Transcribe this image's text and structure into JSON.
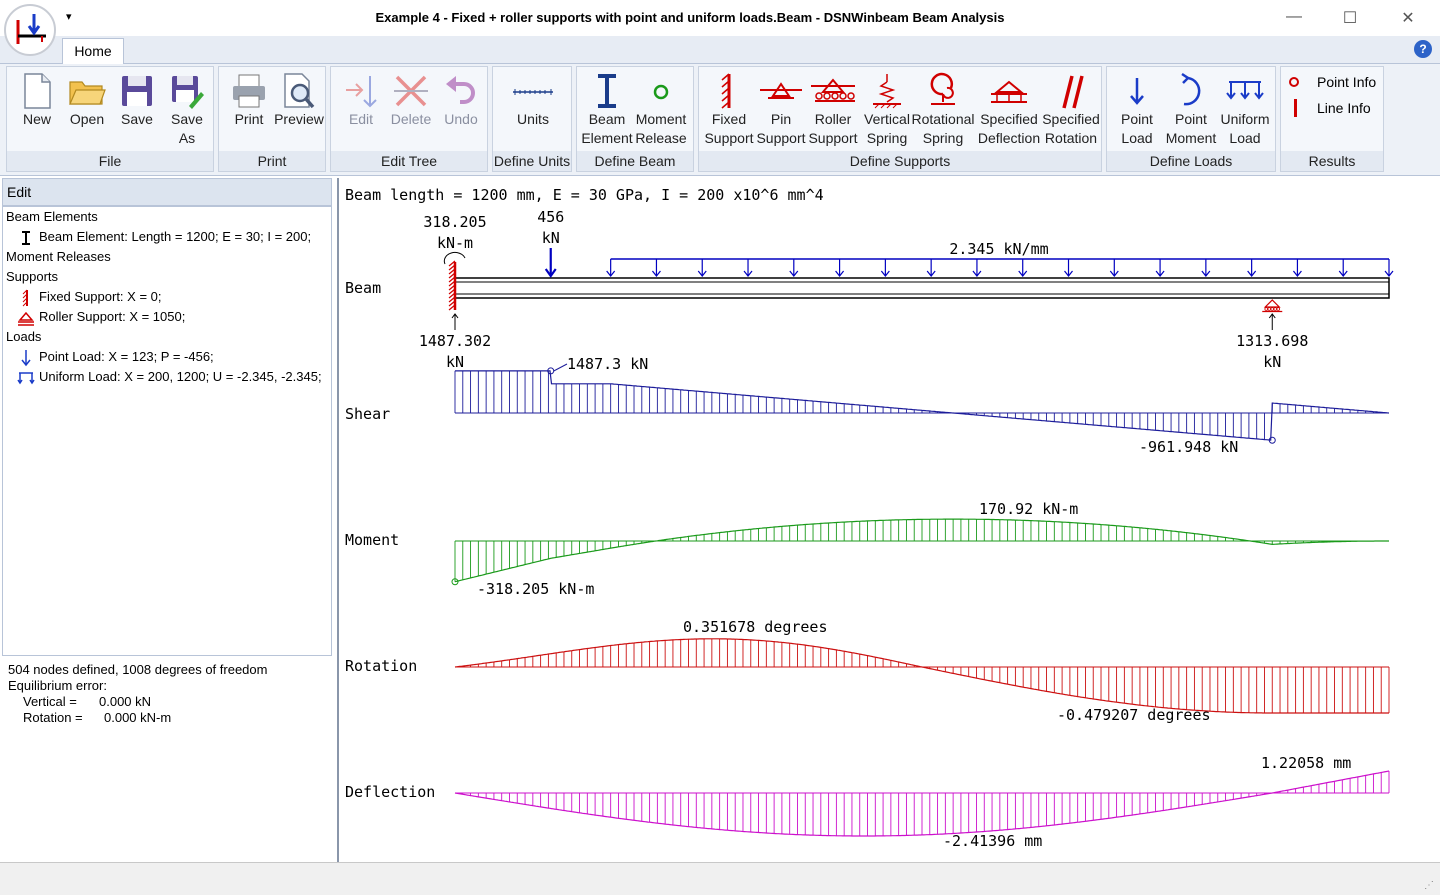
{
  "window": {
    "title": "Example 4 - Fixed + roller supports with point and uniform loads.Beam - DSNWinbeam Beam Analysis",
    "qat_glyph": "▾",
    "minimize": "—",
    "maximize": "☐",
    "close": "✕"
  },
  "tabs": {
    "home": "Home",
    "help": "?"
  },
  "ribbon": {
    "file": {
      "label": "File",
      "buttons": [
        "New",
        "Open",
        "Save",
        "Save\nAs"
      ]
    },
    "print": {
      "label": "Print",
      "buttons": [
        "Print",
        "Preview"
      ]
    },
    "edit_tree": {
      "label": "Edit Tree",
      "buttons": [
        "Edit",
        "Delete",
        "Undo"
      ]
    },
    "define_units": {
      "label": "Define Units",
      "buttons": [
        "Units"
      ]
    },
    "define_beam": {
      "label": "Define Beam",
      "buttons": [
        "Beam\nElement",
        "Moment\nRelease"
      ]
    },
    "define_supports": {
      "label": "Define Supports",
      "buttons": [
        "Fixed\nSupport",
        "Pin\nSupport",
        "Roller\nSupport",
        "Vertical\nSpring",
        "Rotational\nSpring",
        "Specified\nDeflection",
        "Specified\nRotation"
      ]
    },
    "define_loads": {
      "label": "Define Loads",
      "buttons": [
        "Point\nLoad",
        "Point\nMoment",
        "Uniform\nLoad"
      ]
    },
    "results": {
      "label": "Results",
      "buttons": [
        "Point Info",
        "Line Info"
      ]
    }
  },
  "left_panel": {
    "header": "Edit",
    "tree": {
      "beam_elements": "Beam Elements",
      "beam_element_item": "Beam Element: Length = 1200; E = 30; I = 200;",
      "moment_releases": "Moment Releases",
      "supports": "Supports",
      "fixed_support_item": "Fixed Support: X = 0;",
      "roller_support_item": "Roller Support: X = 1050;",
      "loads": "Loads",
      "point_load_item": "Point Load: X = 123; P = -456;",
      "uniform_load_item": "Uniform Load: X = 200, 1200; U = -2.345, -2.345;"
    },
    "status": {
      "nodes": "504 nodes defined, 1008 degrees of freedom",
      "eq_error": "Equilibrium error:",
      "vertical_label": "Vertical =",
      "vertical_value": "0.000 kN",
      "rotation_label": "Rotation =",
      "rotation_value": "0.000 kN-m"
    }
  },
  "diagram": {
    "header": "Beam length = 1200 mm, E = 30 GPa, I = 200 x10^6 mm^4",
    "beam_length": 1200,
    "rows": {
      "beam": "Beam",
      "shear": "Shear",
      "moment": "Moment",
      "rotation": "Rotation",
      "deflection": "Deflection"
    },
    "fixed_moment": {
      "value": "318.205",
      "unit": "kN-m"
    },
    "point_load": {
      "x": 123,
      "value": "456",
      "unit": "kN"
    },
    "uniform_load": {
      "x_start": 200,
      "x_end": 1200,
      "label": "2.345 kN/mm"
    },
    "roller_x": 1050,
    "reaction_left": {
      "value": "1487.302",
      "unit": "kN"
    },
    "reaction_right": {
      "value": "1313.698",
      "unit": "kN"
    },
    "shear_max_label": "1487.3 kN",
    "shear_min_label": "-961.948 kN",
    "moment_max_label": "170.92 kN-m",
    "moment_min_label": "-318.205 kN-m",
    "rotation_max_label": "0.351678 degrees",
    "rotation_min_label": "-0.479207 degrees",
    "deflection_max_label": "1.22058 mm",
    "deflection_min_label": "-2.41396 mm",
    "colors": {
      "beam": "#000000",
      "load": "#0000c0",
      "support": "#d00000",
      "shear": "#1c1c9a",
      "moment": "#1a9a1a",
      "rotation": "#cc1010",
      "deflection": "#cc10cc"
    }
  }
}
